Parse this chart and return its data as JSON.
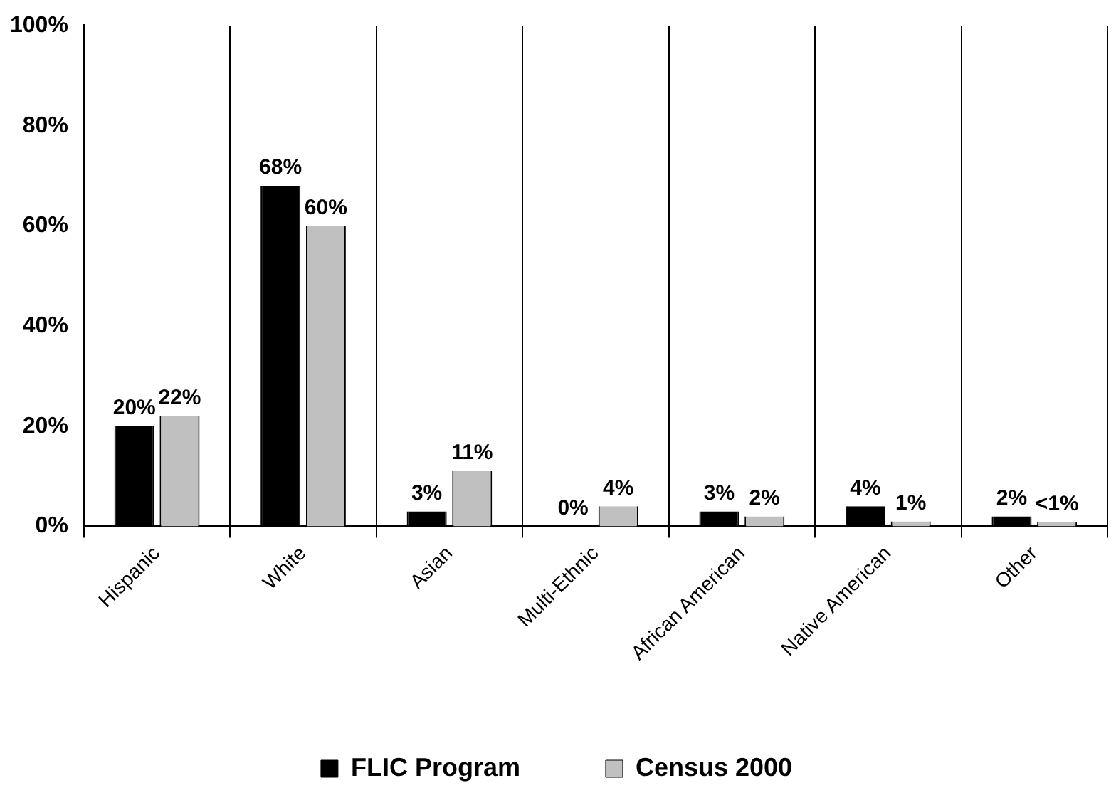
{
  "chart_data": {
    "type": "bar",
    "categories": [
      "Hispanic",
      "White",
      "Asian",
      "Multi-Ethnic",
      "African American",
      "Native American",
      "Other"
    ],
    "series": [
      {
        "name": "FLIC Program",
        "color": "#000000",
        "values": [
          20,
          68,
          3,
          0,
          3,
          4,
          2
        ],
        "value_labels": [
          "20%",
          "68%",
          "3%",
          "0%",
          "3%",
          "4%",
          "2%"
        ]
      },
      {
        "name": "Census 2000",
        "color": "#c0c0c0",
        "values": [
          22,
          60,
          11,
          4,
          2,
          1,
          0.8
        ],
        "value_labels": [
          "22%",
          "60%",
          "11%",
          "4%",
          "2%",
          "1%",
          "<1%"
        ]
      }
    ],
    "ylim": [
      0,
      100
    ],
    "yticks": [
      {
        "value": 0,
        "label": "0%"
      },
      {
        "value": 20,
        "label": "20%"
      },
      {
        "value": 40,
        "label": "40%"
      },
      {
        "value": 60,
        "label": "60%"
      },
      {
        "value": 80,
        "label": "80%"
      },
      {
        "value": 100,
        "label": "100%"
      }
    ],
    "grid": "x",
    "legend": "bottom"
  }
}
